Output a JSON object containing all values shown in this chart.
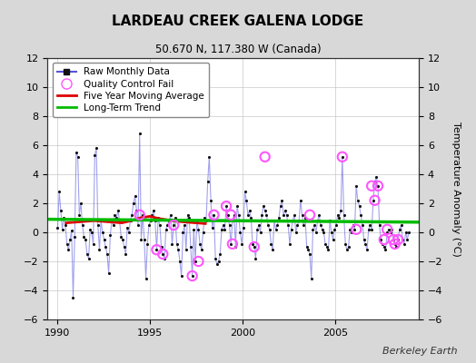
{
  "title": "LARDEAU CREEK GALENA LODGE",
  "subtitle": "50.670 N, 117.380 W (Canada)",
  "ylabel": "Temperature Anomaly (°C)",
  "credit": "Berkeley Earth",
  "xlim": [
    1989.5,
    2009.5
  ],
  "ylim": [
    -6,
    12
  ],
  "yticks_left": [
    -6,
    -4,
    -2,
    0,
    2,
    4,
    6,
    8,
    10,
    12
  ],
  "yticks_right": [
    -6,
    -4,
    -2,
    0,
    2,
    4,
    6,
    8,
    10,
    12
  ],
  "xticks": [
    1990,
    1995,
    2000,
    2005
  ],
  "bg_color": "#d8d8d8",
  "plot_bg": "#ffffff",
  "raw_x": [
    1990.042,
    1990.125,
    1990.208,
    1990.292,
    1990.375,
    1990.458,
    1990.542,
    1990.625,
    1990.708,
    1990.792,
    1990.875,
    1990.958,
    1991.042,
    1991.125,
    1991.208,
    1991.292,
    1991.375,
    1991.458,
    1991.542,
    1991.625,
    1991.708,
    1991.792,
    1991.875,
    1991.958,
    1992.042,
    1992.125,
    1992.208,
    1992.292,
    1992.375,
    1992.458,
    1992.542,
    1992.625,
    1992.708,
    1992.792,
    1992.875,
    1992.958,
    1993.042,
    1993.125,
    1993.208,
    1993.292,
    1993.375,
    1993.458,
    1993.542,
    1993.625,
    1993.708,
    1993.792,
    1993.875,
    1993.958,
    1994.042,
    1994.125,
    1994.208,
    1994.292,
    1994.375,
    1994.458,
    1994.542,
    1994.625,
    1994.708,
    1994.792,
    1994.875,
    1994.958,
    1995.042,
    1995.125,
    1995.208,
    1995.292,
    1995.375,
    1995.458,
    1995.542,
    1995.625,
    1995.708,
    1995.792,
    1995.875,
    1995.958,
    1996.042,
    1996.125,
    1996.208,
    1996.292,
    1996.375,
    1996.458,
    1996.542,
    1996.625,
    1996.708,
    1996.792,
    1996.875,
    1996.958,
    1997.042,
    1997.125,
    1997.208,
    1997.292,
    1997.375,
    1997.458,
    1997.542,
    1997.625,
    1997.708,
    1997.792,
    1997.875,
    1997.958,
    1998.042,
    1998.125,
    1998.208,
    1998.292,
    1998.375,
    1998.458,
    1998.542,
    1998.625,
    1998.708,
    1998.792,
    1998.875,
    1998.958,
    1999.042,
    1999.125,
    1999.208,
    1999.292,
    1999.375,
    1999.458,
    1999.542,
    1999.625,
    1999.708,
    1999.792,
    1999.875,
    1999.958,
    2000.042,
    2000.125,
    2000.208,
    2000.292,
    2000.375,
    2000.458,
    2000.542,
    2000.625,
    2000.708,
    2000.792,
    2000.875,
    2000.958,
    2001.042,
    2001.125,
    2001.208,
    2001.292,
    2001.375,
    2001.458,
    2001.542,
    2001.625,
    2001.708,
    2001.792,
    2001.875,
    2001.958,
    2002.042,
    2002.125,
    2002.208,
    2002.292,
    2002.375,
    2002.458,
    2002.542,
    2002.625,
    2002.708,
    2002.792,
    2002.875,
    2002.958,
    2003.042,
    2003.125,
    2003.208,
    2003.292,
    2003.375,
    2003.458,
    2003.542,
    2003.625,
    2003.708,
    2003.792,
    2003.875,
    2003.958,
    2004.042,
    2004.125,
    2004.208,
    2004.292,
    2004.375,
    2004.458,
    2004.542,
    2004.625,
    2004.708,
    2004.792,
    2004.875,
    2004.958,
    2005.042,
    2005.125,
    2005.208,
    2005.292,
    2005.375,
    2005.458,
    2005.542,
    2005.625,
    2005.708,
    2005.792,
    2005.875,
    2005.958,
    2006.042,
    2006.125,
    2006.208,
    2006.292,
    2006.375,
    2006.458,
    2006.542,
    2006.625,
    2006.708,
    2006.792,
    2006.875,
    2006.958,
    2007.042,
    2007.125,
    2007.208,
    2007.292,
    2007.375,
    2007.458,
    2007.542,
    2007.625,
    2007.708,
    2007.792,
    2007.875,
    2007.958,
    2008.042,
    2008.125,
    2008.208,
    2008.292,
    2008.375,
    2008.458,
    2008.542,
    2008.625,
    2008.708,
    2008.792,
    2008.875,
    2008.958
  ],
  "raw_y": [
    0.3,
    2.8,
    1.5,
    0.2,
    1.0,
    0.5,
    -0.8,
    -1.2,
    -0.5,
    0.1,
    -4.5,
    -0.3,
    5.5,
    5.2,
    1.2,
    2.0,
    0.5,
    -0.3,
    -0.5,
    -1.5,
    -1.8,
    0.2,
    0.0,
    -0.8,
    5.3,
    5.8,
    0.5,
    -1.2,
    0.8,
    0.0,
    -0.5,
    -1.0,
    -1.5,
    -2.8,
    -0.2,
    0.8,
    0.5,
    1.2,
    1.0,
    1.5,
    0.8,
    -0.3,
    -0.5,
    -1.0,
    -1.5,
    0.3,
    0.0,
    0.8,
    1.2,
    2.0,
    2.5,
    1.5,
    0.5,
    6.8,
    -0.5,
    1.2,
    -0.5,
    -3.2,
    -0.8,
    0.5,
    0.8,
    1.2,
    1.5,
    0.8,
    -1.2,
    1.0,
    0.5,
    -1.0,
    -1.5,
    -1.8,
    0.2,
    0.5,
    0.8,
    1.2,
    -0.8,
    0.5,
    1.0,
    -0.8,
    -1.2,
    -2.0,
    -3.0,
    0.0,
    0.5,
    -1.2,
    1.2,
    1.0,
    -1.0,
    -3.0,
    0.2,
    -2.0,
    0.8,
    0.2,
    -0.8,
    -1.2,
    0.0,
    1.0,
    0.8,
    3.5,
    5.2,
    2.2,
    0.3,
    1.2,
    -1.8,
    -2.2,
    -2.0,
    -1.5,
    0.2,
    0.5,
    0.2,
    1.8,
    1.2,
    0.5,
    -0.8,
    0.8,
    1.2,
    -1.0,
    1.8,
    1.2,
    0.0,
    -0.8,
    0.3,
    2.8,
    2.2,
    1.2,
    1.5,
    1.0,
    -0.8,
    -1.0,
    -1.8,
    0.2,
    0.5,
    0.0,
    1.2,
    1.8,
    1.5,
    1.2,
    0.5,
    0.2,
    -0.8,
    -1.2,
    0.8,
    0.2,
    0.5,
    1.0,
    1.8,
    2.2,
    1.2,
    1.5,
    1.2,
    0.5,
    -0.8,
    0.2,
    0.8,
    1.2,
    0.0,
    0.5,
    0.8,
    2.2,
    1.2,
    0.5,
    1.0,
    -1.0,
    -1.2,
    -1.5,
    -3.2,
    0.2,
    0.5,
    0.0,
    0.8,
    1.2,
    0.5,
    0.2,
    0.0,
    -0.8,
    -1.0,
    -1.2,
    0.8,
    0.0,
    -0.5,
    0.2,
    0.5,
    1.2,
    1.0,
    1.5,
    5.2,
    1.2,
    -0.8,
    -1.2,
    -1.0,
    0.2,
    0.0,
    0.5,
    0.2,
    3.2,
    2.2,
    1.8,
    1.2,
    0.5,
    -0.5,
    -0.8,
    -1.2,
    0.2,
    0.5,
    0.2,
    2.2,
    3.5,
    3.8,
    3.2,
    0.5,
    -0.5,
    -0.8,
    -1.0,
    -1.2,
    0.0,
    0.2,
    0.0,
    0.2,
    -0.5,
    -0.8,
    -1.0,
    -0.5,
    0.2,
    0.5,
    -0.5,
    -0.8,
    0.0,
    -0.5,
    0.0
  ],
  "qc_fail_x": [
    1994.458,
    1995.375,
    1995.708,
    1996.292,
    1997.292,
    1997.625,
    1998.458,
    1999.125,
    1999.375,
    1999.458,
    2000.625,
    2001.208,
    2003.625,
    2005.375,
    2006.125,
    2006.958,
    2007.125,
    2007.292,
    2007.625,
    2007.792,
    2008.125,
    2008.208,
    2008.375
  ],
  "qc_fail_y": [
    1.2,
    -1.2,
    -1.5,
    0.5,
    -3.0,
    -2.0,
    1.2,
    1.8,
    1.2,
    -0.8,
    -1.0,
    5.2,
    1.2,
    5.2,
    0.2,
    3.2,
    2.2,
    3.2,
    -0.5,
    0.2,
    -0.5,
    -0.8,
    -0.5
  ],
  "moving_avg_x": [
    1990.5,
    1991.0,
    1991.5,
    1992.0,
    1992.5,
    1993.0,
    1993.5,
    1994.0,
    1994.5,
    1995.0,
    1995.5,
    1996.0,
    1996.5,
    1997.0,
    1997.5,
    1998.0
  ],
  "moving_avg_y": [
    0.65,
    0.7,
    0.75,
    0.8,
    0.75,
    0.7,
    0.65,
    0.8,
    1.0,
    1.1,
    0.95,
    0.85,
    0.75,
    0.7,
    0.65,
    0.6
  ],
  "trend_x": [
    1989.5,
    2009.5
  ],
  "trend_y": [
    0.9,
    0.7
  ],
  "line_color": "#5555dd",
  "line_alpha": 0.55,
  "marker_color": "#111111",
  "qc_color": "#ff55ff",
  "moving_avg_color": "#dd0000",
  "trend_color": "#00bb00",
  "title_fontsize": 11,
  "subtitle_fontsize": 8.5,
  "axis_fontsize": 8,
  "legend_fontsize": 7.5,
  "credit_fontsize": 8
}
